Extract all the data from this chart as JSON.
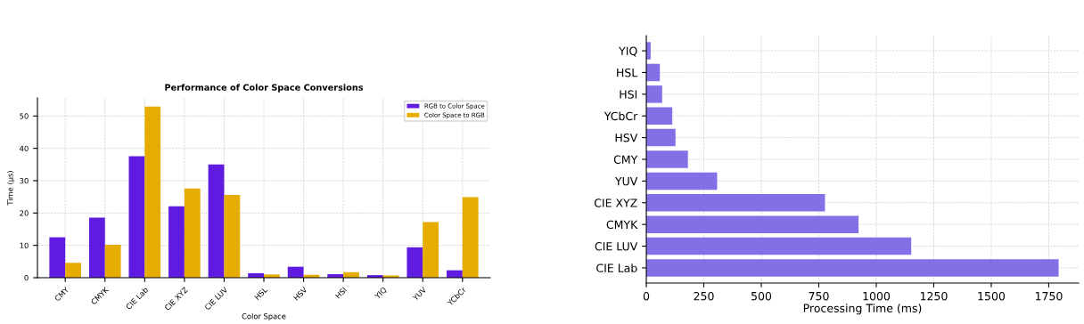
{
  "chart_data": [
    {
      "type": "bar",
      "title": "Performance of Color Space Conversions",
      "xlabel": "Color Space",
      "ylabel": "Time (µs)",
      "categories": [
        "CMY",
        "CMYK",
        "CIE Lab",
        "CIE XYZ",
        "CIE LUV",
        "HSL",
        "HSV",
        "HSI",
        "YIQ",
        "YUV",
        "YCbCr"
      ],
      "series": [
        {
          "name": "RGB to Color Space",
          "color": "#5f1ce0",
          "values": [
            12.5,
            18.6,
            37.6,
            22.1,
            35.0,
            1.4,
            3.4,
            1.1,
            0.8,
            9.4,
            2.3
          ]
        },
        {
          "name": "Color Space to RGB",
          "color": "#e6ac00",
          "values": [
            4.6,
            10.2,
            52.9,
            27.6,
            25.6,
            1.0,
            0.9,
            1.7,
            0.7,
            17.2,
            24.9
          ]
        }
      ],
      "ylim": [
        0,
        55.6
      ],
      "yticks": [
        0,
        10,
        20,
        30,
        40,
        50
      ],
      "grid": true,
      "legend": "top right"
    },
    {
      "type": "bar",
      "orientation": "horizontal",
      "xlabel": "Processing Time (ms)",
      "categories": [
        "YIQ",
        "HSL",
        "HSI",
        "YCbCr",
        "HSV",
        "CMY",
        "YUV",
        "CIE XYZ",
        "CMYK",
        "CIE LUV",
        "CIE Lab"
      ],
      "series": [
        {
          "color": "#8170e6",
          "values": [
            19,
            59,
            69,
            113,
            127,
            181,
            308,
            777,
            923,
            1152,
            1793
          ]
        }
      ],
      "xlim": [
        0,
        1880
      ],
      "xticks": [
        0,
        250,
        500,
        750,
        1000,
        1250,
        1500,
        1750
      ],
      "grid": true
    }
  ]
}
